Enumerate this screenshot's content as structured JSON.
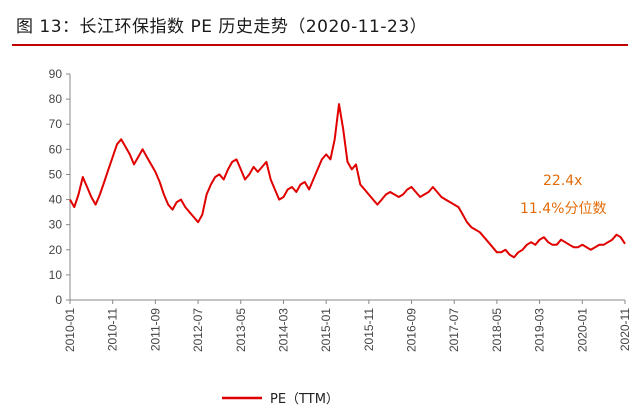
{
  "header": {
    "title": "图 13：长江环保指数 PE 历史走势（2020-11-23）"
  },
  "chart_data": {
    "type": "line",
    "title": "图 13：长江环保指数 PE 历史走势（2020-11-23）",
    "xlabel": "",
    "ylabel": "",
    "ylim": [
      0,
      90
    ],
    "yticks": [
      0,
      10,
      20,
      30,
      40,
      50,
      60,
      70,
      80,
      90
    ],
    "xlim": [
      "2010-01",
      "2020-11"
    ],
    "xticks": [
      "2010-01",
      "2010-11",
      "2011-09",
      "2012-07",
      "2013-05",
      "2014-03",
      "2015-01",
      "2015-11",
      "2016-09",
      "2017-07",
      "2018-05",
      "2019-03",
      "2020-01",
      "2020-11"
    ],
    "grid": false,
    "legend": "bottom-center",
    "color": "#e00000",
    "annotations": [
      "22.4x",
      "11.4%分位数"
    ],
    "annotation_color": "#e36c09",
    "series": [
      {
        "name": "PE（TTM）",
        "x": [
          "2010-01",
          "2010-02",
          "2010-03",
          "2010-04",
          "2010-05",
          "2010-06",
          "2010-07",
          "2010-08",
          "2010-09",
          "2010-10",
          "2010-11",
          "2010-12",
          "2011-01",
          "2011-02",
          "2011-03",
          "2011-04",
          "2011-05",
          "2011-06",
          "2011-07",
          "2011-08",
          "2011-09",
          "2011-10",
          "2011-11",
          "2011-12",
          "2012-01",
          "2012-02",
          "2012-03",
          "2012-04",
          "2012-05",
          "2012-06",
          "2012-07",
          "2012-08",
          "2012-09",
          "2012-10",
          "2012-11",
          "2012-12",
          "2013-01",
          "2013-02",
          "2013-03",
          "2013-04",
          "2013-05",
          "2013-06",
          "2013-07",
          "2013-08",
          "2013-09",
          "2013-10",
          "2013-11",
          "2013-12",
          "2014-01",
          "2014-02",
          "2014-03",
          "2014-04",
          "2014-05",
          "2014-06",
          "2014-07",
          "2014-08",
          "2014-09",
          "2014-10",
          "2014-11",
          "2014-12",
          "2015-01",
          "2015-02",
          "2015-03",
          "2015-04",
          "2015-05",
          "2015-06",
          "2015-07",
          "2015-08",
          "2015-09",
          "2015-10",
          "2015-11",
          "2015-12",
          "2016-01",
          "2016-02",
          "2016-03",
          "2016-04",
          "2016-05",
          "2016-06",
          "2016-07",
          "2016-08",
          "2016-09",
          "2016-10",
          "2016-11",
          "2016-12",
          "2017-01",
          "2017-02",
          "2017-03",
          "2017-04",
          "2017-05",
          "2017-06",
          "2017-07",
          "2017-08",
          "2017-09",
          "2017-10",
          "2017-11",
          "2017-12",
          "2018-01",
          "2018-02",
          "2018-03",
          "2018-04",
          "2018-05",
          "2018-06",
          "2018-07",
          "2018-08",
          "2018-09",
          "2018-10",
          "2018-11",
          "2018-12",
          "2019-01",
          "2019-02",
          "2019-03",
          "2019-04",
          "2019-05",
          "2019-06",
          "2019-07",
          "2019-08",
          "2019-09",
          "2019-10",
          "2019-11",
          "2019-12",
          "2020-01",
          "2020-02",
          "2020-03",
          "2020-04",
          "2020-05",
          "2020-06",
          "2020-07",
          "2020-08",
          "2020-09",
          "2020-10",
          "2020-11"
        ],
        "values": [
          40,
          37,
          42,
          49,
          45,
          41,
          38,
          42,
          47,
          52,
          57,
          62,
          64,
          61,
          58,
          54,
          57,
          60,
          57,
          54,
          51,
          47,
          42,
          38,
          36,
          39,
          40,
          37,
          35,
          33,
          31,
          34,
          42,
          46,
          49,
          50,
          48,
          52,
          55,
          56,
          52,
          48,
          50,
          53,
          51,
          53,
          55,
          48,
          44,
          40,
          41,
          44,
          45,
          43,
          46,
          47,
          44,
          48,
          52,
          56,
          58,
          56,
          64,
          78,
          68,
          55,
          52,
          54,
          46,
          44,
          42,
          40,
          38,
          40,
          42,
          43,
          42,
          41,
          42,
          44,
          45,
          43,
          41,
          42,
          43,
          45,
          43,
          41,
          40,
          39,
          38,
          37,
          34,
          31,
          29,
          28,
          27,
          25,
          23,
          21,
          19,
          19,
          20,
          18,
          17,
          19,
          20,
          22,
          23,
          22,
          24,
          25,
          23,
          22,
          22,
          24,
          23,
          22,
          21,
          21,
          22,
          21,
          20,
          21,
          22,
          22,
          23,
          24,
          26,
          25,
          22.4
        ]
      }
    ]
  }
}
